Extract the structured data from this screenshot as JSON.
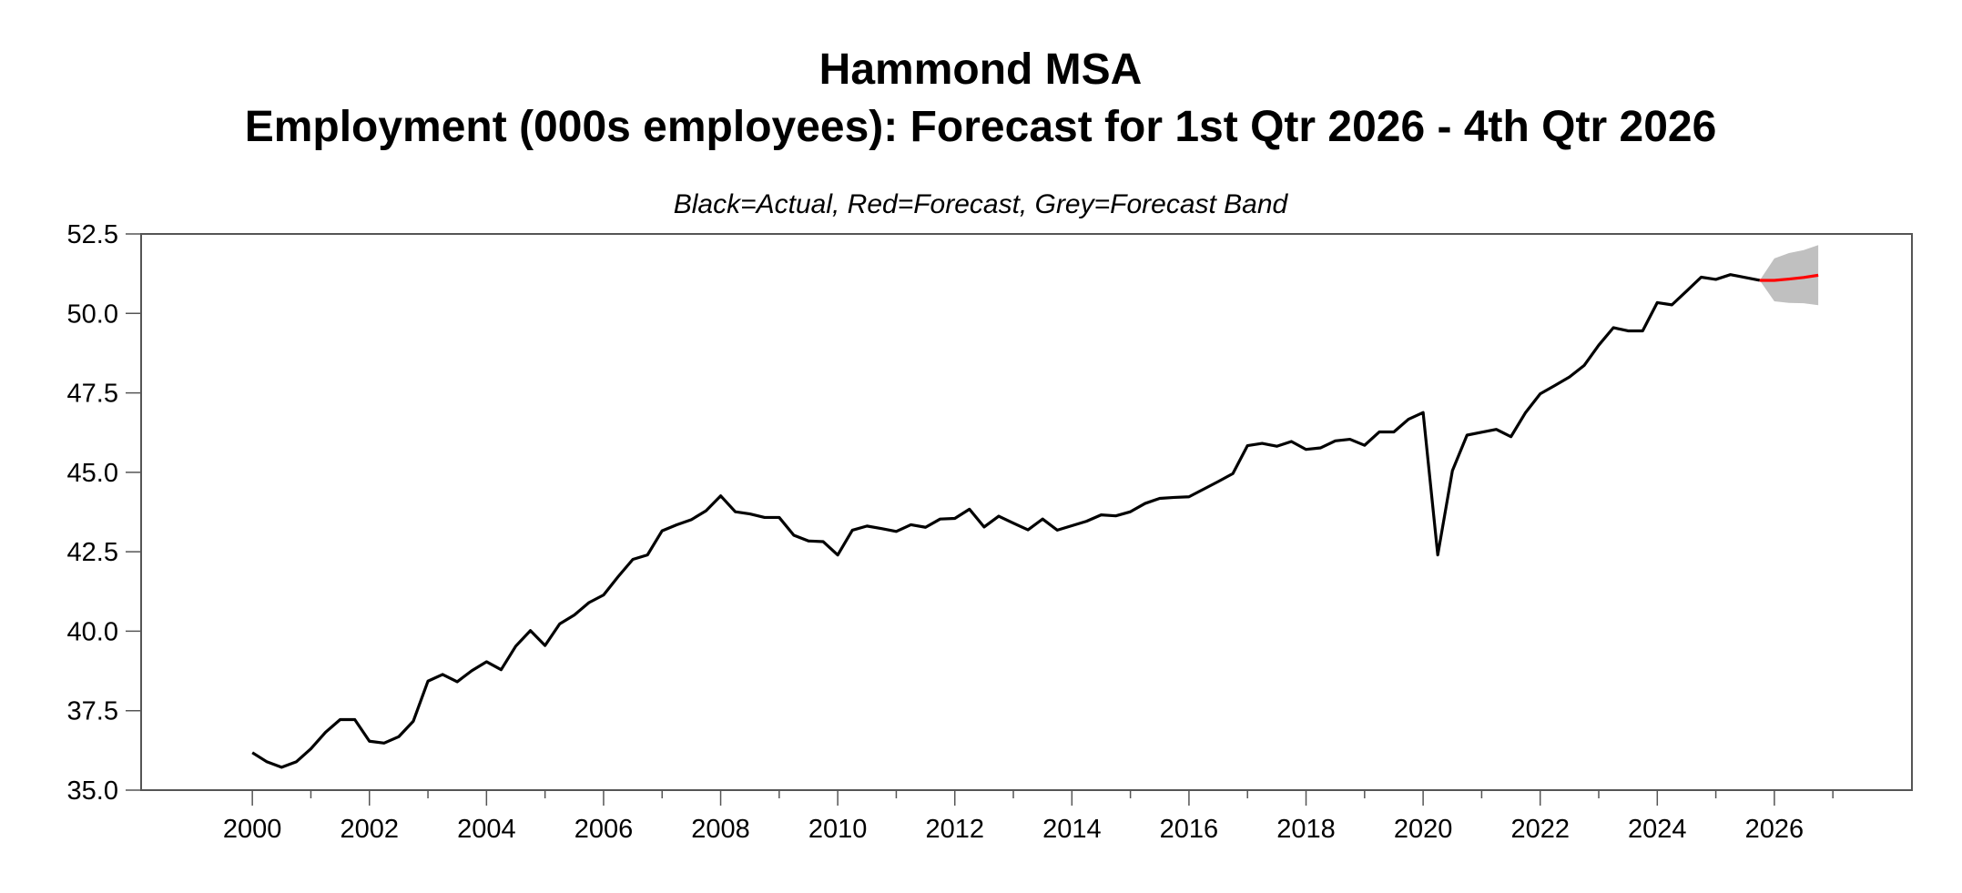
{
  "chart_data": {
    "type": "line",
    "title": "Hammond MSA",
    "subtitle": "Employment (000s employees): Forecast for 1st Qtr 2026 - 4th Qtr 2026",
    "note": "Black=Actual, Red=Forecast, Grey=Forecast Band",
    "xlabel": "",
    "ylabel": "",
    "ylim": [
      35.0,
      52.5
    ],
    "xlim": [
      1998.1,
      2028.35
    ],
    "yticks": [
      "35.0",
      "37.5",
      "40.0",
      "42.5",
      "45.0",
      "47.5",
      "50.0",
      "52.5"
    ],
    "xticks": [
      "2000",
      "2002",
      "2004",
      "2006",
      "2008",
      "2010",
      "2012",
      "2014",
      "2016",
      "2018",
      "2020",
      "2022",
      "2024",
      "2026"
    ],
    "grid": false,
    "colors": {
      "actual": "#000000",
      "forecast": "#ff0000",
      "band": "#c0c0c0",
      "frame": "#555555"
    },
    "actual": {
      "x": [
        "2000Q1",
        "2000Q2",
        "2000Q3",
        "2000Q4",
        "2001Q1",
        "2001Q2",
        "2001Q3",
        "2001Q4",
        "2002Q1",
        "2002Q2",
        "2002Q3",
        "2002Q4",
        "2003Q1",
        "2003Q2",
        "2003Q3",
        "2003Q4",
        "2004Q1",
        "2004Q2",
        "2004Q3",
        "2004Q4",
        "2005Q1",
        "2005Q2",
        "2005Q3",
        "2005Q4",
        "2006Q1",
        "2006Q2",
        "2006Q3",
        "2006Q4",
        "2007Q1",
        "2007Q2",
        "2007Q3",
        "2007Q4",
        "2008Q1",
        "2008Q2",
        "2008Q3",
        "2008Q4",
        "2009Q1",
        "2009Q2",
        "2009Q3",
        "2009Q4",
        "2010Q1",
        "2010Q2",
        "2010Q3",
        "2010Q4",
        "2011Q1",
        "2011Q2",
        "2011Q3",
        "2011Q4",
        "2012Q1",
        "2012Q2",
        "2012Q3",
        "2012Q4",
        "2013Q1",
        "2013Q2",
        "2013Q3",
        "2013Q4",
        "2014Q1",
        "2014Q2",
        "2014Q3",
        "2014Q4",
        "2015Q1",
        "2015Q2",
        "2015Q3",
        "2015Q4",
        "2016Q1",
        "2016Q2",
        "2016Q3",
        "2016Q4",
        "2017Q1",
        "2017Q2",
        "2017Q3",
        "2017Q4",
        "2018Q1",
        "2018Q2",
        "2018Q3",
        "2018Q4",
        "2019Q1",
        "2019Q2",
        "2019Q3",
        "2019Q4",
        "2020Q1",
        "2020Q2",
        "2020Q3",
        "2020Q4",
        "2021Q1",
        "2021Q2",
        "2021Q3",
        "2021Q4",
        "2022Q1",
        "2022Q2",
        "2022Q3",
        "2022Q4",
        "2023Q1",
        "2023Q2",
        "2023Q3",
        "2023Q4",
        "2024Q1",
        "2024Q2",
        "2024Q3",
        "2024Q4",
        "2025Q1",
        "2025Q2",
        "2025Q3",
        "2025Q4"
      ],
      "y": [
        36.18,
        35.89,
        35.72,
        35.89,
        36.3,
        36.82,
        37.22,
        37.22,
        36.54,
        36.48,
        36.68,
        37.17,
        38.43,
        38.64,
        38.41,
        38.76,
        39.04,
        38.79,
        39.53,
        40.02,
        39.55,
        40.23,
        40.51,
        40.9,
        41.14,
        41.72,
        42.26,
        42.4,
        43.16,
        43.35,
        43.51,
        43.79,
        44.26,
        43.76,
        43.69,
        43.58,
        43.58,
        43.02,
        42.84,
        42.82,
        42.4,
        43.18,
        43.31,
        43.23,
        43.14,
        43.35,
        43.27,
        43.53,
        43.55,
        43.84,
        43.28,
        43.62,
        43.4,
        43.19,
        43.53,
        43.18,
        43.32,
        43.46,
        43.66,
        43.63,
        43.76,
        44.02,
        44.18,
        44.21,
        44.23,
        44.47,
        44.71,
        44.96,
        45.84,
        45.91,
        45.82,
        45.97,
        45.72,
        45.77,
        45.99,
        46.04,
        45.85,
        46.27,
        46.27,
        46.67,
        46.88,
        42.4,
        45.05,
        46.17,
        46.26,
        46.35,
        46.12,
        46.88,
        47.47,
        47.73,
        48.0,
        48.36,
        49.0,
        49.55,
        49.45,
        49.45,
        50.34,
        50.27,
        50.7,
        51.14,
        51.07,
        51.22,
        51.13,
        51.04
      ]
    },
    "forecast": {
      "x": [
        "2026Q1",
        "2026Q2",
        "2026Q3",
        "2026Q4"
      ],
      "y": [
        51.04,
        51.08,
        51.13,
        51.2
      ],
      "band_lower": [
        50.38,
        50.33,
        50.32,
        50.26
      ],
      "band_upper": [
        51.73,
        51.9,
        51.99,
        52.15
      ]
    }
  }
}
